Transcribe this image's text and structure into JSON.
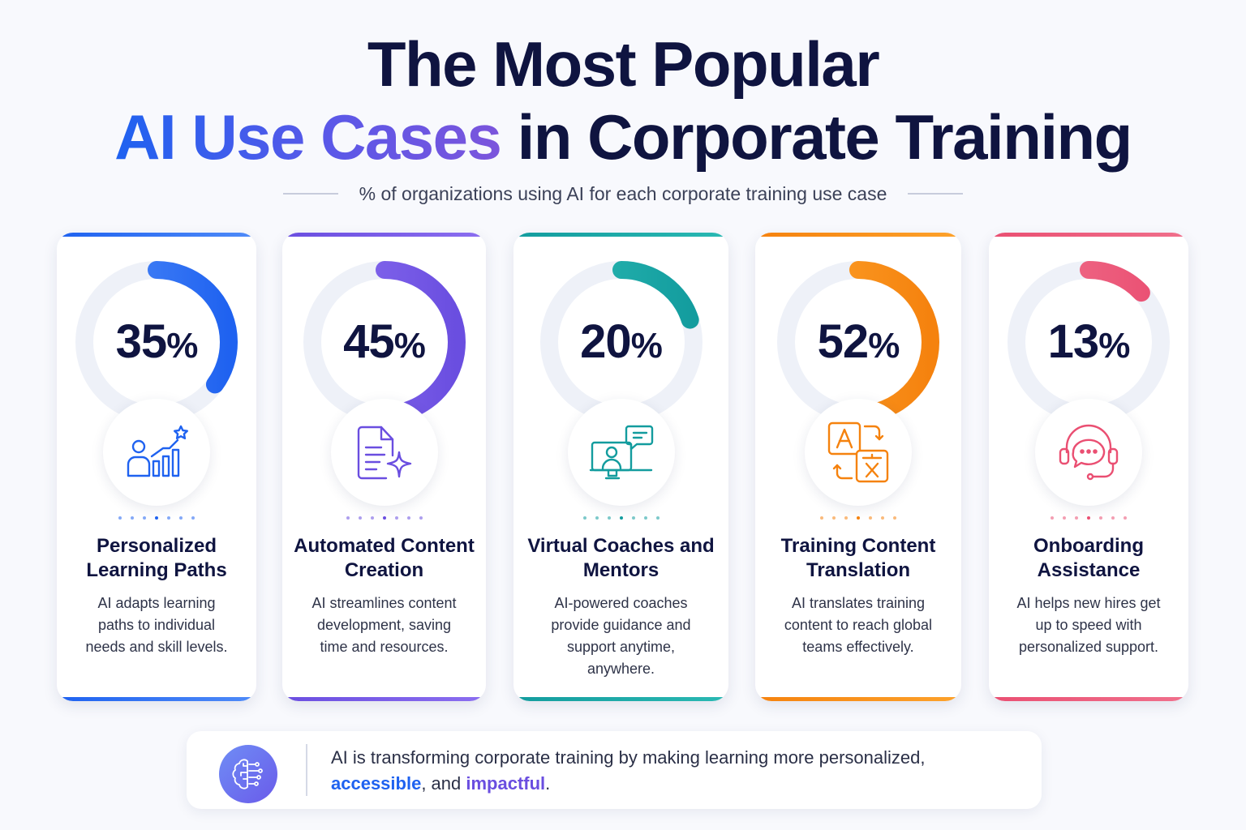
{
  "header": {
    "title_line1": "The Most Popular",
    "title_line2_highlight": "AI Use Cases",
    "title_line2_rest": "in Corporate Training",
    "subtitle": "% of organizations using AI for each corporate training use case"
  },
  "chart_data": {
    "type": "donut",
    "title": "The Most Popular AI Use Cases in Corporate Training",
    "subtitle": "% of organizations using AI for each corporate training use case",
    "categories": [
      "Personalized Learning Paths",
      "Automated Content Creation",
      "Virtual Coaches and Mentors",
      "Training Content Translation",
      "Onboarding Assistance"
    ],
    "values": [
      35,
      45,
      20,
      52,
      13
    ],
    "unit": "%"
  },
  "cards": [
    {
      "value": 35,
      "pct_text": "35",
      "sign": "%",
      "name": "Personalized Learning Paths",
      "desc": "AI adapts learning paths to individual needs and skill levels.",
      "color": "#1f62f0",
      "color2": "#4f8bf8",
      "icon": "learning-path-icon"
    },
    {
      "value": 45,
      "pct_text": "45",
      "sign": "%",
      "name": "Automated Content Creation",
      "desc": "AI streamlines content development, saving time and resources.",
      "color": "#6a4ee0",
      "color2": "#8b6ef0",
      "icon": "document-sparkle-icon"
    },
    {
      "value": 20,
      "pct_text": "20",
      "sign": "%",
      "name": "Virtual Coaches and Mentors",
      "desc": "AI-powered coaches provide guidance and support anytime, anywhere.",
      "color": "#139c9e",
      "color2": "#2ab9b3",
      "icon": "virtual-coach-icon"
    },
    {
      "value": 52,
      "pct_text": "52",
      "sign": "%",
      "name": "Training Content Translation",
      "desc": "AI translates training content to reach global teams effectively.",
      "color": "#f5820e",
      "color2": "#fda22b",
      "icon": "translate-icon"
    },
    {
      "value": 13,
      "pct_text": "13",
      "sign": "%",
      "name": "Onboarding Assistance",
      "desc": "AI helps new hires get up to speed with personalized support.",
      "color": "#ea4f72",
      "color2": "#f0708c",
      "icon": "headset-chat-icon"
    }
  ],
  "footer": {
    "text_before": "AI is transforming corporate training by making learning more personalized,",
    "highlight1": "accessible",
    "text_middle": ", and ",
    "highlight2": "impactful",
    "text_end": ".",
    "icon": "ai-brain-icon"
  }
}
